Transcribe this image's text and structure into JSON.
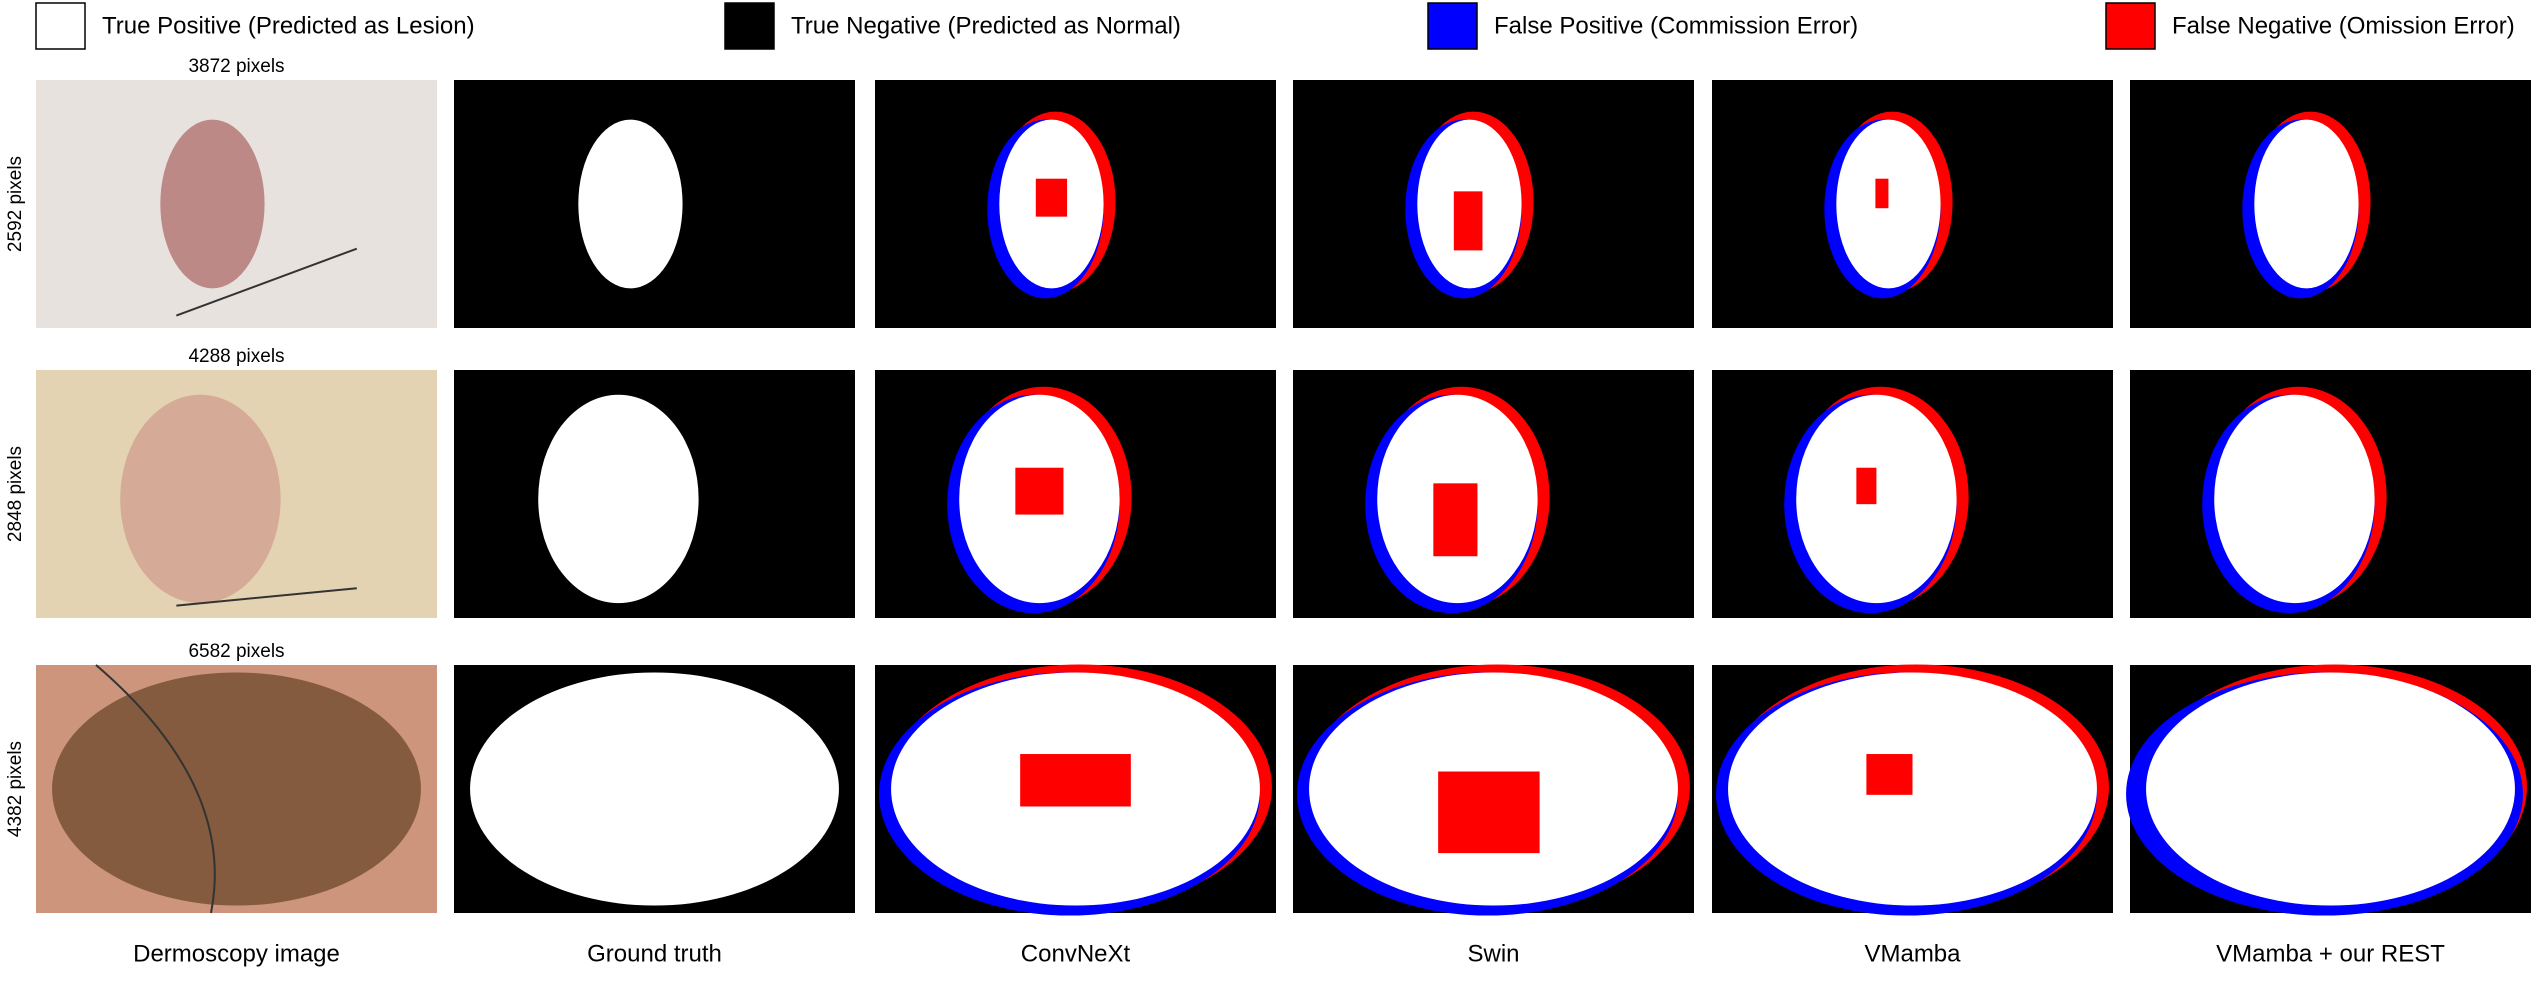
{
  "legend": [
    {
      "label": "True Positive (Predicted as Lesion)",
      "color": "#ffffff"
    },
    {
      "label": "True Negative (Predicted as Normal)",
      "color": "#000000"
    },
    {
      "label": "False Positive (Commission Error)",
      "color": "#0000ff"
    },
    {
      "label": "False Negative (Omission Error)",
      "color": "#ff0000"
    }
  ],
  "rows": [
    {
      "width": "3872 pixels",
      "height": "2592 pixels"
    },
    {
      "width": "4288 pixels",
      "height": "2848 pixels"
    },
    {
      "width": "6582 pixels",
      "height": "4382 pixels"
    }
  ],
  "columns": [
    "Dermoscopy image",
    "Ground truth",
    "ConvNeXt",
    "Swin",
    "VMamba",
    "VMamba + our REST"
  ]
}
